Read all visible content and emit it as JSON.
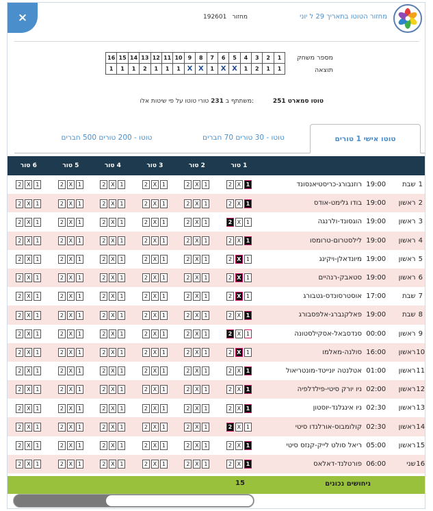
{
  "header": {
    "close_label": "×",
    "round_number": "192601",
    "round_label": "מחזור",
    "round_date_text": "מחזור הטוטו בתאריך 29 ל יוני"
  },
  "results": {
    "labels": [
      "מספר משחק",
      "תוצאה"
    ],
    "games": [
      "1",
      "2",
      "3",
      "4",
      "5",
      "6",
      "7",
      "8",
      "9",
      "10",
      "11",
      "12",
      "13",
      "14",
      "15",
      "16"
    ],
    "outcomes": [
      "1",
      "1",
      "2",
      "1",
      "X",
      "X",
      "1",
      "X",
      "X",
      "1",
      "1",
      "1",
      "2",
      "1",
      "1",
      "1"
    ]
  },
  "system": {
    "title": "טוטו סמארט 251",
    "desc_prefix": "משתתף ב ",
    "desc_count": "231",
    "desc_suffix": " טורי טוטו על פי שיטות אלו:"
  },
  "tabs": [
    "טוטו אישי 1 טורים",
    "טוטו - 30 טורים 70 חברים",
    "טוטו - 200 טורים 500 חברים"
  ],
  "columns": [
    "1 טור",
    "2 טור",
    "3 טור",
    "4 טור",
    "5 טור",
    "6 טור"
  ],
  "rows": [
    {
      "n": "1",
      "day": "שבת",
      "time": "19:00",
      "game": "רוזנבורג-כריסטיאנסונד",
      "sel": "1"
    },
    {
      "n": "2",
      "day": "ראשון",
      "time": "19:00",
      "game": "בודו גלימט-אודס",
      "sel": "1"
    },
    {
      "n": "3",
      "day": "ראשון",
      "time": "19:00",
      "game": "הוגסונד-ולרנגה",
      "sel": "2"
    },
    {
      "n": "4",
      "day": "ראשון",
      "time": "19:00",
      "game": "לילסטרום-טרומסו",
      "sel": "1"
    },
    {
      "n": "5",
      "day": "ראשון",
      "time": "19:00",
      "game": "מיונדאלן-ויקינג",
      "sel": "X"
    },
    {
      "n": "6",
      "day": "ראשון",
      "time": "19:00",
      "game": "סטאבק-רנהיים",
      "sel": "X"
    },
    {
      "n": "7",
      "day": "שבת",
      "time": "17:00",
      "game": "אוסטרסונדס-גטבורג",
      "sel": "X"
    },
    {
      "n": "8",
      "day": "שבת",
      "time": "19:00",
      "game": "פאלקנברג-אלפסבורג",
      "sel": "1"
    },
    {
      "n": "9",
      "day": "ראשון",
      "time": "00:00",
      "game": "סנדסבאל-אסקילסטונה",
      "sel": "1"
    },
    {
      "n": "10",
      "day": "ראשון",
      "time": "16:00",
      "game": "סולנה-מאלמו",
      "sel": "X"
    },
    {
      "n": "11",
      "day": "ראשון",
      "time": "01:00",
      "game": "אטלנטה יונייטד-מונטריאול",
      "sel": "1"
    },
    {
      "n": "12",
      "day": "ראשון",
      "time": "02:00",
      "game": "ניו יורק סיטי-פילדלפיה",
      "sel": "1"
    },
    {
      "n": "13",
      "day": "ראשון",
      "time": "02:30",
      "game": "ניו אינגלנד-יוסטון",
      "sel": "1"
    },
    {
      "n": "14",
      "day": "ראשון",
      "time": "02:30",
      "game": "קולומבוס-אורלנדו סיטי",
      "sel": "2"
    },
    {
      "n": "15",
      "day": "ראשון",
      "time": "05:00",
      "game": "ריאל סולט לייק-קנזס סיטי",
      "sel": "1"
    },
    {
      "n": "16",
      "day": "שני",
      "time": "06:00",
      "game": "פורטלנד-דאלאס",
      "sel": "1"
    }
  ],
  "footer": {
    "label": "ניחושים נכונים",
    "value": "15"
  },
  "colors": {
    "header_bg": "#1d3a4e",
    "accent": "#4a8fcb",
    "alt_row": "#f9e4e1",
    "footer_bg": "#9ac13c",
    "selected_border": "#d0146a"
  }
}
